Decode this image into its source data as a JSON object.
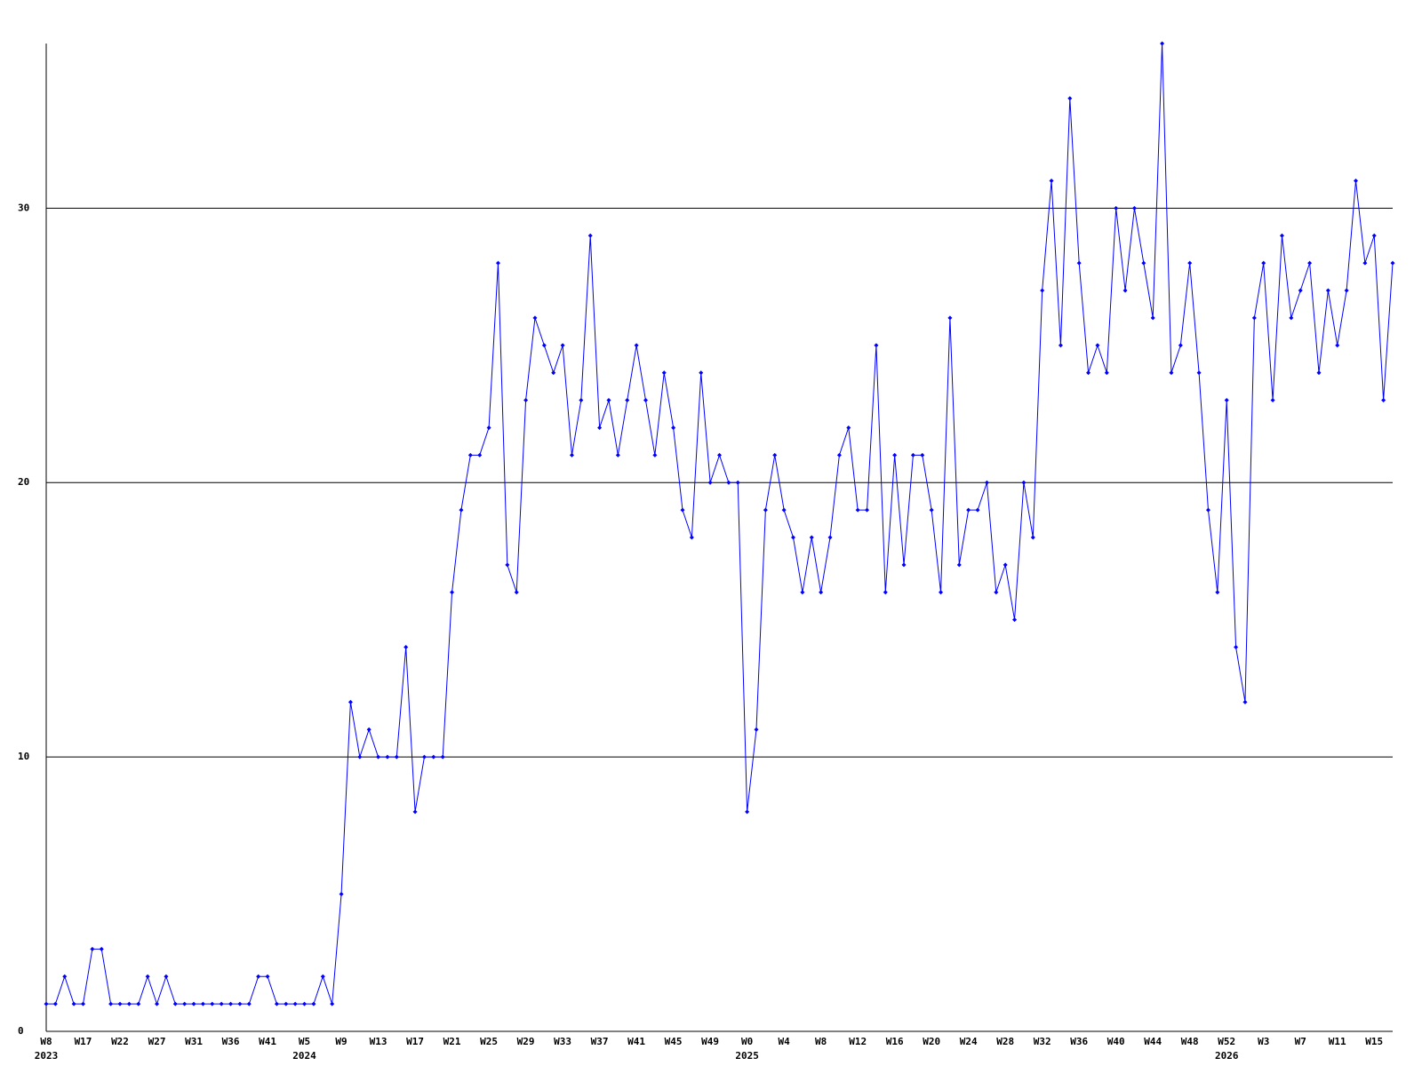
{
  "chart_data": {
    "type": "line",
    "color": "#0000ff",
    "grid": true,
    "ylim": [
      0,
      36
    ],
    "yticks": [
      0,
      10,
      20,
      30
    ],
    "categories": [
      "W8",
      null,
      null,
      null,
      "W17",
      null,
      null,
      null,
      "W22",
      null,
      null,
      null,
      "W27",
      null,
      null,
      null,
      "W31",
      null,
      null,
      null,
      "W36",
      null,
      null,
      null,
      "W41",
      null,
      null,
      null,
      "W5",
      null,
      null,
      null,
      "W9",
      null,
      null,
      null,
      "W13",
      null,
      null,
      null,
      "W17",
      null,
      null,
      null,
      "W21",
      null,
      null,
      null,
      "W25",
      null,
      null,
      null,
      "W29",
      null,
      null,
      null,
      "W33",
      null,
      null,
      null,
      "W37",
      null,
      null,
      null,
      "W41",
      null,
      null,
      null,
      "W45",
      null,
      null,
      null,
      "W49",
      null,
      null,
      null,
      "W0",
      null,
      null,
      null,
      "W4",
      null,
      null,
      null,
      "W8",
      null,
      null,
      null,
      "W12",
      null,
      null,
      null,
      "W16",
      null,
      null,
      null,
      "W20",
      null,
      null,
      null,
      "W24",
      null,
      null,
      null,
      "W28",
      null,
      null,
      null,
      "W32",
      null,
      null,
      null,
      "W36",
      null,
      null,
      null,
      "W40",
      null,
      null,
      null,
      "W44",
      null,
      null,
      null,
      "W48",
      null,
      null,
      null,
      "W52",
      null,
      null,
      null,
      "W3",
      null,
      null,
      null,
      "W7",
      null,
      null,
      null,
      "W11",
      null,
      null,
      null,
      "W15",
      null,
      null
    ],
    "years": [
      "2023",
      null,
      null,
      null,
      null,
      null,
      null,
      null,
      null,
      null,
      null,
      null,
      null,
      null,
      null,
      null,
      null,
      null,
      null,
      null,
      null,
      null,
      null,
      null,
      null,
      null,
      null,
      null,
      "2024",
      null,
      null,
      null,
      null,
      null,
      null,
      null,
      null,
      null,
      null,
      null,
      null,
      null,
      null,
      null,
      null,
      null,
      null,
      null,
      null,
      null,
      null,
      null,
      null,
      null,
      null,
      null,
      null,
      null,
      null,
      null,
      null,
      null,
      null,
      null,
      null,
      null,
      null,
      null,
      null,
      null,
      null,
      null,
      null,
      null,
      null,
      null,
      "2025",
      null,
      null,
      null,
      null,
      null,
      null,
      null,
      null,
      null,
      null,
      null,
      null,
      null,
      null,
      null,
      null,
      null,
      null,
      null,
      null,
      null,
      null,
      null,
      null,
      null,
      null,
      null,
      null,
      null,
      null,
      null,
      null,
      null,
      null,
      null,
      null,
      null,
      null,
      null,
      null,
      null,
      null,
      null,
      null,
      null,
      null,
      null,
      null,
      null,
      null,
      null,
      "2026",
      null,
      null,
      null,
      null,
      null,
      null,
      null,
      null,
      null,
      null,
      null,
      null,
      null,
      null,
      null,
      null
    ],
    "values": [
      1,
      1,
      2,
      1,
      1,
      3,
      3,
      1,
      1,
      1,
      1,
      2,
      1,
      2,
      1,
      1,
      1,
      1,
      1,
      1,
      1,
      1,
      1,
      2,
      2,
      1,
      1,
      1,
      1,
      1,
      2,
      1,
      5,
      12,
      10,
      11,
      10,
      10,
      10,
      14,
      8,
      10,
      10,
      10,
      16,
      19,
      21,
      21,
      22,
      28,
      17,
      16,
      23,
      26,
      25,
      24,
      25,
      21,
      23,
      29,
      22,
      23,
      21,
      23,
      25,
      23,
      21,
      24,
      22,
      19,
      18,
      24,
      20,
      21,
      20,
      20,
      8,
      11,
      19,
      21,
      19,
      18,
      16,
      18,
      16,
      18,
      21,
      22,
      19,
      19,
      25,
      16,
      21,
      17,
      21,
      21,
      19,
      16,
      26,
      17,
      19,
      19,
      20,
      16,
      17,
      15,
      20,
      18,
      27,
      31,
      25,
      34,
      28,
      24,
      25,
      24,
      30,
      27,
      30,
      28,
      26,
      36,
      24,
      25,
      28,
      24,
      19,
      16,
      23,
      14,
      12,
      26,
      28,
      23,
      29,
      26,
      27,
      28,
      24,
      27,
      25,
      27,
      31,
      28,
      29,
      23,
      28
    ]
  }
}
